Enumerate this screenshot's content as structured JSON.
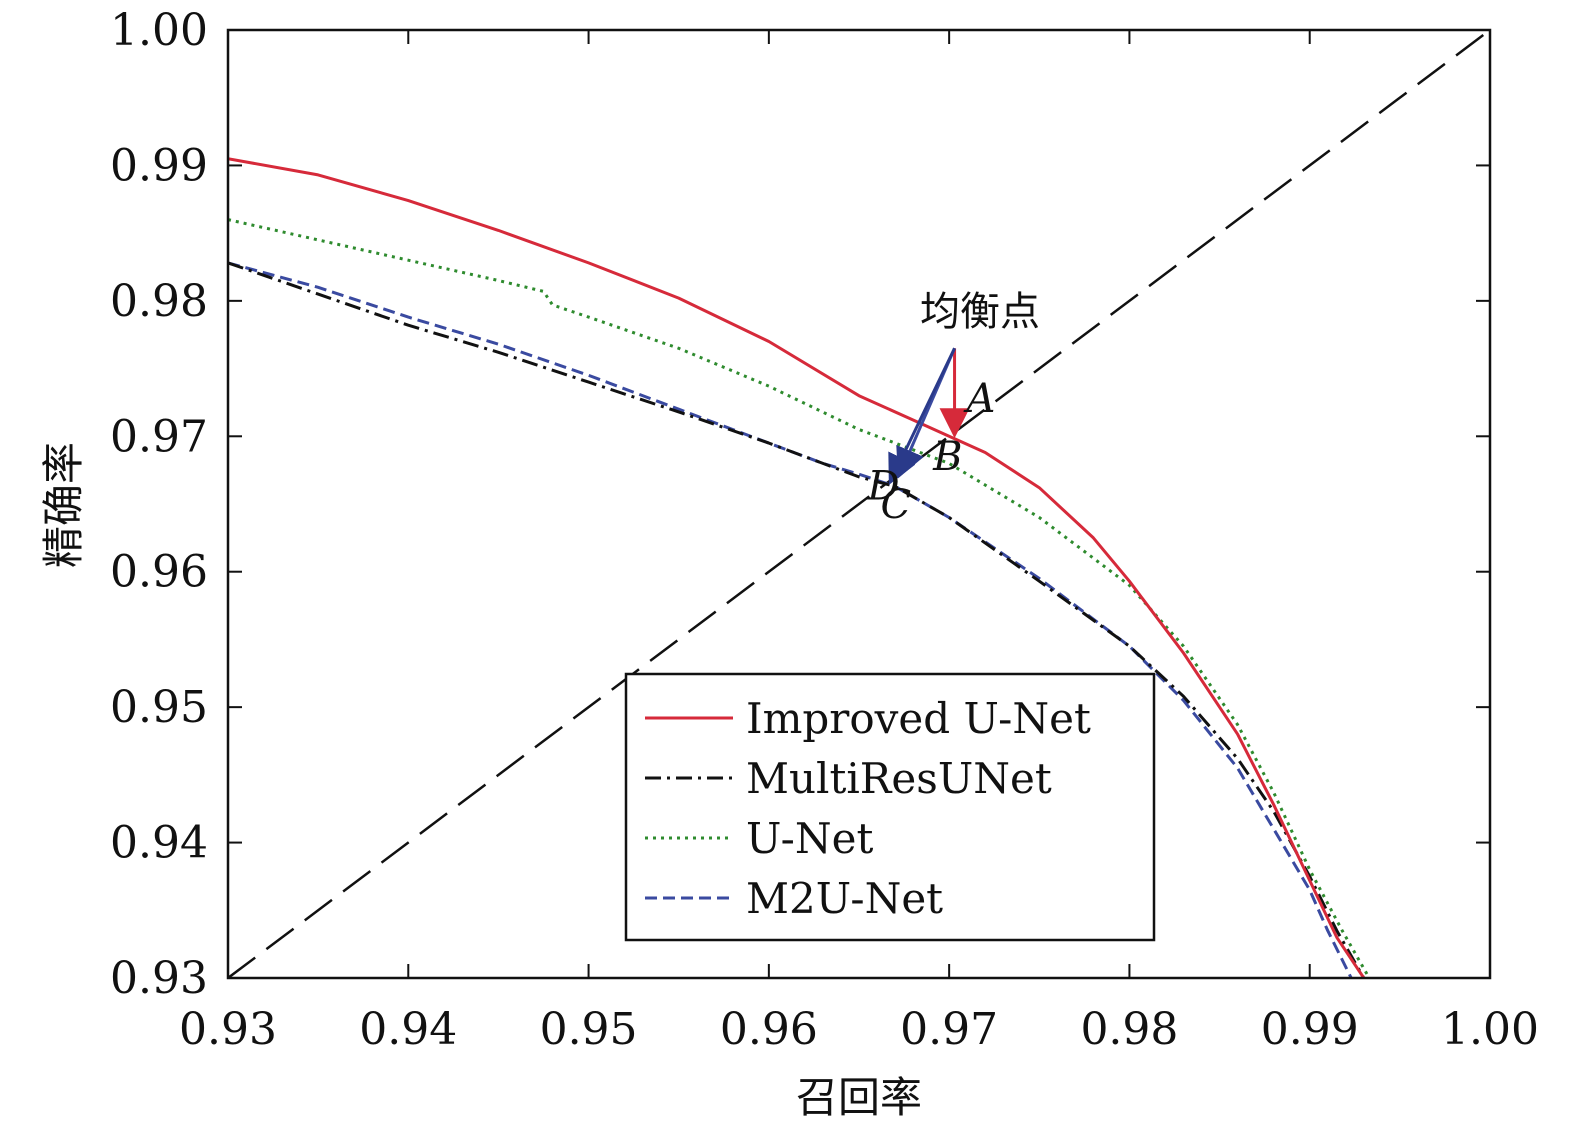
{
  "chart_data": {
    "type": "line",
    "title": "",
    "xlabel": "召回率",
    "ylabel": "精确率",
    "xlim": [
      0.93,
      1.0
    ],
    "ylim": [
      0.93,
      1.0
    ],
    "xticks": [
      "0.93",
      "0.94",
      "0.95",
      "0.96",
      "0.97",
      "0.98",
      "0.99",
      "1.00"
    ],
    "yticks": [
      "0.93",
      "0.94",
      "0.95",
      "0.96",
      "0.97",
      "0.98",
      "0.99",
      "1.00"
    ],
    "grid": false,
    "legend_position": "lower-right",
    "series": [
      {
        "name": "Improved U-Net",
        "color": "#d62a3a",
        "style": "solid",
        "x": [
          0.93,
          0.935,
          0.94,
          0.945,
          0.95,
          0.955,
          0.96,
          0.965,
          0.968,
          0.97,
          0.972,
          0.975,
          0.978,
          0.98,
          0.983,
          0.986,
          0.988,
          0.99,
          0.9915,
          0.993
        ],
        "y": [
          0.9905,
          0.9893,
          0.9874,
          0.9852,
          0.9828,
          0.9802,
          0.977,
          0.973,
          0.9712,
          0.97,
          0.9688,
          0.9662,
          0.9625,
          0.9593,
          0.954,
          0.948,
          0.9428,
          0.9372,
          0.933,
          0.93
        ]
      },
      {
        "name": "MultiResUNet",
        "color": "#111111",
        "style": "dashdot",
        "x": [
          0.93,
          0.935,
          0.94,
          0.945,
          0.95,
          0.955,
          0.96,
          0.963,
          0.965,
          0.967,
          0.97,
          0.975,
          0.98,
          0.983,
          0.986,
          0.988,
          0.99,
          0.9915,
          0.993
        ],
        "y": [
          0.9828,
          0.9805,
          0.9782,
          0.9762,
          0.974,
          0.9718,
          0.9695,
          0.968,
          0.967,
          0.9663,
          0.964,
          0.9593,
          0.9545,
          0.9508,
          0.9462,
          0.9423,
          0.9375,
          0.9335,
          0.93
        ]
      },
      {
        "name": "U-Net",
        "color": "#2e8b2e",
        "style": "dotted",
        "x": [
          0.93,
          0.935,
          0.94,
          0.945,
          0.9475,
          0.948,
          0.95,
          0.955,
          0.96,
          0.965,
          0.969,
          0.97,
          0.975,
          0.98,
          0.983,
          0.986,
          0.988,
          0.99,
          0.9918,
          0.9933
        ],
        "y": [
          0.986,
          0.9845,
          0.983,
          0.9815,
          0.9807,
          0.9797,
          0.9788,
          0.9765,
          0.9737,
          0.9705,
          0.9685,
          0.968,
          0.964,
          0.959,
          0.9545,
          0.9487,
          0.9437,
          0.938,
          0.9335,
          0.93
        ]
      },
      {
        "name": "M2U-Net",
        "color": "#3a4aa0",
        "style": "dashed",
        "x": [
          0.93,
          0.935,
          0.94,
          0.945,
          0.95,
          0.955,
          0.96,
          0.963,
          0.965,
          0.967,
          0.97,
          0.975,
          0.98,
          0.983,
          0.986,
          0.988,
          0.99,
          0.991,
          0.9923
        ],
        "y": [
          0.9828,
          0.981,
          0.9788,
          0.9768,
          0.9745,
          0.972,
          0.9695,
          0.968,
          0.9672,
          0.9663,
          0.964,
          0.9595,
          0.9545,
          0.9505,
          0.9455,
          0.941,
          0.9365,
          0.9335,
          0.93
        ]
      }
    ],
    "diagonal": {
      "style": "dashed",
      "color": "#111111",
      "from": [
        0.93,
        0.93
      ],
      "to": [
        1.0,
        1.0
      ]
    },
    "annotation": {
      "text": "均衡点",
      "arrow_origin": [
        0.9703,
        0.9765
      ]
    },
    "points": [
      {
        "label": "A",
        "x": 0.9703,
        "y": 0.9703,
        "color": "#d62a3a"
      },
      {
        "label": "B",
        "x": 0.969,
        "y": 0.969,
        "color": "#2e8b2e"
      },
      {
        "label": "C",
        "x": 0.9673,
        "y": 0.9673,
        "color": "#3a4aa0"
      },
      {
        "label": "D",
        "x": 0.9668,
        "y": 0.9668,
        "color": "#3a4aa0"
      }
    ]
  }
}
